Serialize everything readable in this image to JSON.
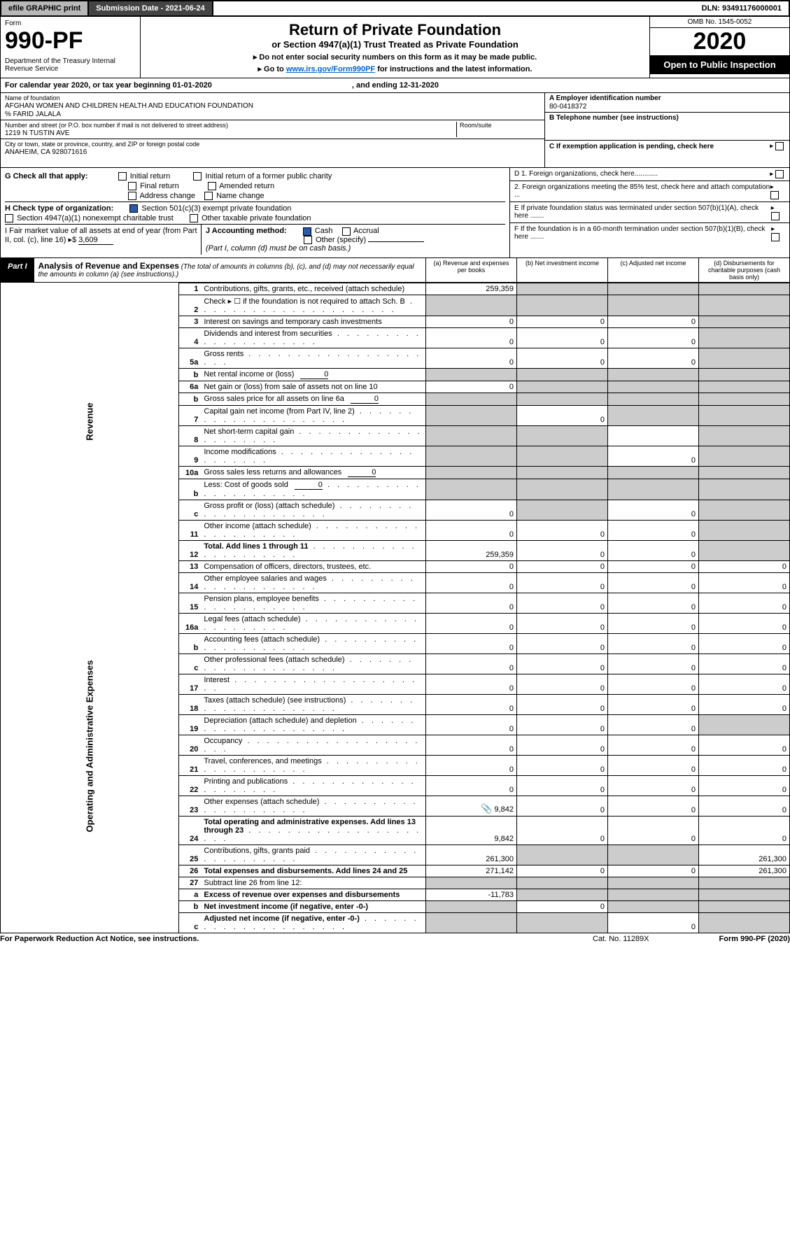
{
  "topbar": {
    "efile": "efile GRAPHIC print",
    "submission": "Submission Date - 2021-06-24",
    "dln": "DLN: 93491176000001"
  },
  "header": {
    "form_label": "Form",
    "form_number": "990-PF",
    "dept": "Department of the Treasury\nInternal Revenue Service",
    "title": "Return of Private Foundation",
    "subtitle": "or Section 4947(a)(1) Trust Treated as Private Foundation",
    "note1": "▸ Do not enter social security numbers on this form as it may be made public.",
    "note2_pre": "▸ Go to ",
    "note2_link": "www.irs.gov/Form990PF",
    "note2_post": " for instructions and the latest information.",
    "omb": "OMB No. 1545-0052",
    "year": "2020",
    "open": "Open to Public Inspection"
  },
  "calyear": {
    "label": "For calendar year 2020, or tax year beginning 01-01-2020",
    "ending": ", and ending 12-31-2020"
  },
  "entity": {
    "name_lbl": "Name of foundation",
    "name": "AFGHAN WOMEN AND CHILDREN HEALTH AND EDUCATION FOUNDATION",
    "co": "% FARID JALALA",
    "street_lbl": "Number and street (or P.O. box number if mail is not delivered to street address)",
    "street": "1219 N TUSTIN AVE",
    "room_lbl": "Room/suite",
    "city_lbl": "City or town, state or province, country, and ZIP or foreign postal code",
    "city": "ANAHEIM, CA  928071616",
    "A_lbl": "A Employer identification number",
    "A": "80-0418372",
    "B_lbl": "B Telephone number (see instructions)",
    "C_lbl": "C If exemption application is pending, check here"
  },
  "G": {
    "label": "G Check all that apply:",
    "items": [
      "Initial return",
      "Final return",
      "Address change",
      "Initial return of a former public charity",
      "Amended return",
      "Name change"
    ]
  },
  "H": {
    "label": "H Check type of organization:",
    "opt1": "Section 501(c)(3) exempt private foundation",
    "opt2": "Section 4947(a)(1) nonexempt charitable trust",
    "opt3": "Other taxable private foundation"
  },
  "I": {
    "label": "I Fair market value of all assets at end of year (from Part II, col. (c), line 16) ▸$",
    "value": "3,609"
  },
  "J": {
    "label": "J Accounting method:",
    "cash": "Cash",
    "accrual": "Accrual",
    "other": "Other (specify)",
    "note": "(Part I, column (d) must be on cash basis.)"
  },
  "D": {
    "d1": "D 1. Foreign organizations, check here............",
    "d2": "2. Foreign organizations meeting the 85% test, check here and attach computation ..."
  },
  "E": "E  If private foundation status was terminated under section 507(b)(1)(A), check here .......",
  "F": "F  If the foundation is in a 60-month termination under section 507(b)(1)(B), check here .......",
  "partI": {
    "part_label": "Part I",
    "title": "Analysis of Revenue and Expenses",
    "desc": " (The total of amounts in columns (b), (c), and (d) may not necessarily equal the amounts in column (a) (see instructions).)",
    "cols": [
      "(a)  Revenue and expenses per books",
      "(b)  Net investment income",
      "(c)  Adjusted net income",
      "(d)  Disbursements for charitable purposes (cash basis only)"
    ]
  },
  "rows": [
    {
      "n": "1",
      "d": "Contributions, gifts, grants, etc., received (attach schedule)",
      "a": "259,359",
      "b": "",
      "c": "",
      "dbs": "",
      "sb": true,
      "sc": true,
      "sd": true
    },
    {
      "n": "2",
      "d": "Check ▸ ☐ if the foundation is not required to attach Sch. B",
      "dots": true,
      "a": "",
      "b": "",
      "c": "",
      "dbs": "",
      "sa": true,
      "sb": true,
      "sc": true,
      "sd": true
    },
    {
      "n": "3",
      "d": "Interest on savings and temporary cash investments",
      "a": "0",
      "b": "0",
      "c": "0",
      "dbs": "",
      "sd": true
    },
    {
      "n": "4",
      "d": "Dividends and interest from securities",
      "dots": true,
      "a": "0",
      "b": "0",
      "c": "0",
      "dbs": "",
      "sd": true
    },
    {
      "n": "5a",
      "d": "Gross rents",
      "dots": true,
      "a": "0",
      "b": "0",
      "c": "0",
      "dbs": "",
      "sd": true
    },
    {
      "n": "b",
      "d": "Net rental income or (loss)",
      "inline": "0",
      "a": "",
      "b": "",
      "c": "",
      "dbs": "",
      "sa": true,
      "sb": true,
      "sc": true,
      "sd": true
    },
    {
      "n": "6a",
      "d": "Net gain or (loss) from sale of assets not on line 10",
      "a": "0",
      "b": "",
      "c": "",
      "dbs": "",
      "sb": true,
      "sc": true,
      "sd": true
    },
    {
      "n": "b",
      "d": "Gross sales price for all assets on line 6a",
      "inline": "0",
      "a": "",
      "b": "",
      "c": "",
      "dbs": "",
      "sa": true,
      "sb": true,
      "sc": true,
      "sd": true
    },
    {
      "n": "7",
      "d": "Capital gain net income (from Part IV, line 2)",
      "dots": true,
      "a": "",
      "b": "0",
      "c": "",
      "dbs": "",
      "sa": true,
      "sc": true,
      "sd": true
    },
    {
      "n": "8",
      "d": "Net short-term capital gain",
      "dots": true,
      "a": "",
      "b": "",
      "c": "",
      "dbs": "",
      "sa": true,
      "sb": true,
      "sd": true
    },
    {
      "n": "9",
      "d": "Income modifications",
      "dots": true,
      "a": "",
      "b": "",
      "c": "0",
      "dbs": "",
      "sa": true,
      "sb": true,
      "sd": true
    },
    {
      "n": "10a",
      "d": "Gross sales less returns and allowances",
      "inline": "0",
      "a": "",
      "b": "",
      "c": "",
      "dbs": "",
      "sa": true,
      "sb": true,
      "sc": true,
      "sd": true
    },
    {
      "n": "b",
      "d": "Less: Cost of goods sold",
      "dots": true,
      "inline": "0",
      "a": "",
      "b": "",
      "c": "",
      "dbs": "",
      "sa": true,
      "sb": true,
      "sc": true,
      "sd": true
    },
    {
      "n": "c",
      "d": "Gross profit or (loss) (attach schedule)",
      "dots": true,
      "a": "0",
      "b": "",
      "c": "0",
      "dbs": "",
      "sb": true,
      "sd": true
    },
    {
      "n": "11",
      "d": "Other income (attach schedule)",
      "dots": true,
      "a": "0",
      "b": "0",
      "c": "0",
      "dbs": "",
      "sd": true
    },
    {
      "n": "12",
      "d": "Total. Add lines 1 through 11",
      "dots": true,
      "bold": true,
      "a": "259,359",
      "b": "0",
      "c": "0",
      "dbs": "",
      "sd": true
    },
    {
      "n": "13",
      "d": "Compensation of officers, directors, trustees, etc.",
      "a": "0",
      "b": "0",
      "c": "0",
      "dbs": "0"
    },
    {
      "n": "14",
      "d": "Other employee salaries and wages",
      "dots": true,
      "a": "0",
      "b": "0",
      "c": "0",
      "dbs": "0"
    },
    {
      "n": "15",
      "d": "Pension plans, employee benefits",
      "dots": true,
      "a": "0",
      "b": "0",
      "c": "0",
      "dbs": "0"
    },
    {
      "n": "16a",
      "d": "Legal fees (attach schedule)",
      "dots": true,
      "a": "0",
      "b": "0",
      "c": "0",
      "dbs": "0"
    },
    {
      "n": "b",
      "d": "Accounting fees (attach schedule)",
      "dots": true,
      "a": "0",
      "b": "0",
      "c": "0",
      "dbs": "0"
    },
    {
      "n": "c",
      "d": "Other professional fees (attach schedule)",
      "dots": true,
      "a": "0",
      "b": "0",
      "c": "0",
      "dbs": "0"
    },
    {
      "n": "17",
      "d": "Interest",
      "dots": true,
      "a": "0",
      "b": "0",
      "c": "0",
      "dbs": "0"
    },
    {
      "n": "18",
      "d": "Taxes (attach schedule) (see instructions)",
      "dots": true,
      "a": "0",
      "b": "0",
      "c": "0",
      "dbs": "0"
    },
    {
      "n": "19",
      "d": "Depreciation (attach schedule) and depletion",
      "dots": true,
      "a": "0",
      "b": "0",
      "c": "0",
      "dbs": "",
      "sd": true
    },
    {
      "n": "20",
      "d": "Occupancy",
      "dots": true,
      "a": "0",
      "b": "0",
      "c": "0",
      "dbs": "0"
    },
    {
      "n": "21",
      "d": "Travel, conferences, and meetings",
      "dots": true,
      "a": "0",
      "b": "0",
      "c": "0",
      "dbs": "0"
    },
    {
      "n": "22",
      "d": "Printing and publications",
      "dots": true,
      "a": "0",
      "b": "0",
      "c": "0",
      "dbs": "0"
    },
    {
      "n": "23",
      "d": "Other expenses (attach schedule)",
      "dots": true,
      "icon": true,
      "a": "9,842",
      "b": "0",
      "c": "0",
      "dbs": "0"
    },
    {
      "n": "24",
      "d": "Total operating and administrative expenses. Add lines 13 through 23",
      "dots": true,
      "bold": true,
      "a": "9,842",
      "b": "0",
      "c": "0",
      "dbs": "0"
    },
    {
      "n": "25",
      "d": "Contributions, gifts, grants paid",
      "dots": true,
      "a": "261,300",
      "b": "",
      "c": "",
      "dbs": "261,300",
      "sb": true,
      "sc": true
    },
    {
      "n": "26",
      "d": "Total expenses and disbursements. Add lines 24 and 25",
      "bold": true,
      "a": "271,142",
      "b": "0",
      "c": "0",
      "dbs": "261,300"
    },
    {
      "n": "27",
      "d": "Subtract line 26 from line 12:",
      "a": "",
      "b": "",
      "c": "",
      "dbs": "",
      "sa": true,
      "sb": true,
      "sc": true,
      "sd": true
    },
    {
      "n": "a",
      "d": "Excess of revenue over expenses and disbursements",
      "bold": true,
      "a": "-11,783",
      "b": "",
      "c": "",
      "dbs": "",
      "sb": true,
      "sc": true,
      "sd": true
    },
    {
      "n": "b",
      "d": "Net investment income (if negative, enter -0-)",
      "bold": true,
      "a": "",
      "b": "0",
      "c": "",
      "dbs": "",
      "sa": true,
      "sc": true,
      "sd": true
    },
    {
      "n": "c",
      "d": "Adjusted net income (if negative, enter -0-)",
      "dots": true,
      "bold": true,
      "a": "",
      "b": "",
      "c": "0",
      "dbs": "",
      "sa": true,
      "sb": true,
      "sd": true
    }
  ],
  "sidelabels": {
    "rev": "Revenue",
    "exp": "Operating and Administrative Expenses"
  },
  "footer": {
    "pra": "For Paperwork Reduction Act Notice, see instructions.",
    "cat": "Cat. No. 11289X",
    "form": "Form 990-PF (2020)"
  }
}
